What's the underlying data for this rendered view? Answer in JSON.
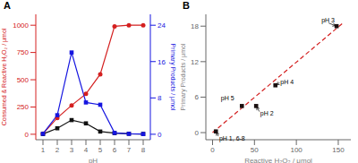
{
  "chart_data": [
    {
      "type": "line",
      "title": "A",
      "xlabel": "pH",
      "ylabel": "Consumed & Reactive H₂O₂ / μmol",
      "y2label": "Primary Products / μmol",
      "x": [
        1,
        2,
        3,
        4,
        5,
        6,
        7,
        8
      ],
      "xlim": [
        0.5,
        8.5
      ],
      "xticks": [
        1,
        2,
        3,
        4,
        5,
        6,
        7,
        8
      ],
      "ylim": [
        -50,
        1100
      ],
      "yticks": [
        0,
        250,
        500,
        750,
        1000
      ],
      "y2lim": [
        -1.2,
        26.4
      ],
      "y2ticks": [
        0,
        8,
        16,
        24
      ],
      "series": [
        {
          "color": "#d42020",
          "marker": "circle",
          "line_style": "solid",
          "values": [
            5,
            150,
            265,
            370,
            550,
            990,
            1000,
            1000
          ]
        },
        {
          "color": "#111111",
          "marker": "square",
          "line_style": "solid",
          "values": [
            2,
            55,
            130,
            100,
            25,
            10,
            5,
            3
          ]
        },
        {
          "color": "#1515e0",
          "marker": "square",
          "line_style": "solid",
          "axis": "y2",
          "values": [
            0.1,
            4.2,
            18.0,
            7.0,
            6.5,
            0.3,
            0.1,
            0.05
          ]
        }
      ]
    },
    {
      "type": "scatter",
      "title": "B",
      "xlabel": "Reactive H₂O₂ / μmol",
      "ylabel": "Primary Products / μmol",
      "xlim": [
        -8,
        165
      ],
      "xticks": [
        0,
        50,
        100,
        150
      ],
      "ylim": [
        -1.2,
        20
      ],
      "yticks": [
        0,
        6,
        12,
        18
      ],
      "series": [
        {
          "type": "line",
          "line_style": "dashed",
          "color": "#d42020",
          "x": [
            0,
            157
          ],
          "values": [
            0,
            18.7
          ]
        },
        {
          "type": "scatter",
          "marker": "square",
          "color": "#1a1010",
          "x": [
            4,
            35,
            52,
            75,
            148
          ],
          "values": [
            0.2,
            4.5,
            4.5,
            8.0,
            18.0
          ]
        }
      ],
      "annotations": [
        {
          "text": "pH 1, 6-8",
          "x": 8,
          "y": -0.9,
          "arrow_x": 4,
          "arrow_y": 0.2
        },
        {
          "text": "pH 5",
          "x": 10,
          "y": 5.8
        },
        {
          "text": "pH 2",
          "x": 57,
          "y": 3.3,
          "arrow_x": 52,
          "arrow_y": 4.5
        },
        {
          "text": "pH 4",
          "x": 81,
          "y": 8.5,
          "arrow_x": 75,
          "arrow_y": 8.0
        },
        {
          "text": "pH 3",
          "x": 130,
          "y": 19.0,
          "arrow_x": 148,
          "arrow_y": 18.0
        }
      ]
    }
  ]
}
